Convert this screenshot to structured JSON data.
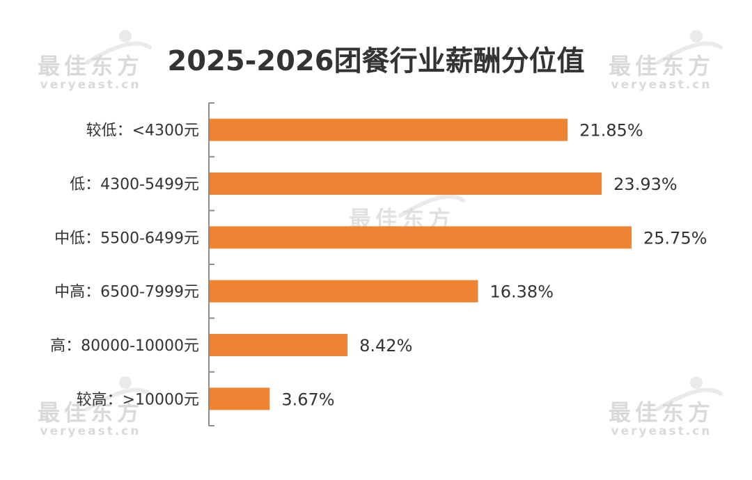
{
  "title": "2025-2026团餐行业薪酬分位值",
  "watermark": {
    "brand": "最佳东方",
    "domain": "veryeast.cn"
  },
  "colors": {
    "bar": "#ee8433",
    "axis": "#8c8c8c",
    "label": "#333333",
    "watermark": "#d9d9d9"
  },
  "chart_data": {
    "type": "bar",
    "orientation": "horizontal",
    "title": "2025-2026团餐行业薪酬分位值",
    "categories": [
      "较低：<4300元",
      "低：4300-5499元",
      "中低：5500-6499元",
      "中高：6500-7999元",
      "高：80000-10000元",
      "较高：>10000元"
    ],
    "values": [
      21.85,
      23.93,
      25.75,
      16.38,
      8.42,
      3.67
    ],
    "value_labels": [
      "21.85%",
      "23.93%",
      "25.75%",
      "16.38%",
      "8.42%",
      "3.67%"
    ],
    "unit": "%",
    "xlim": [
      0,
      27
    ],
    "grid": false,
    "legend": "none"
  }
}
